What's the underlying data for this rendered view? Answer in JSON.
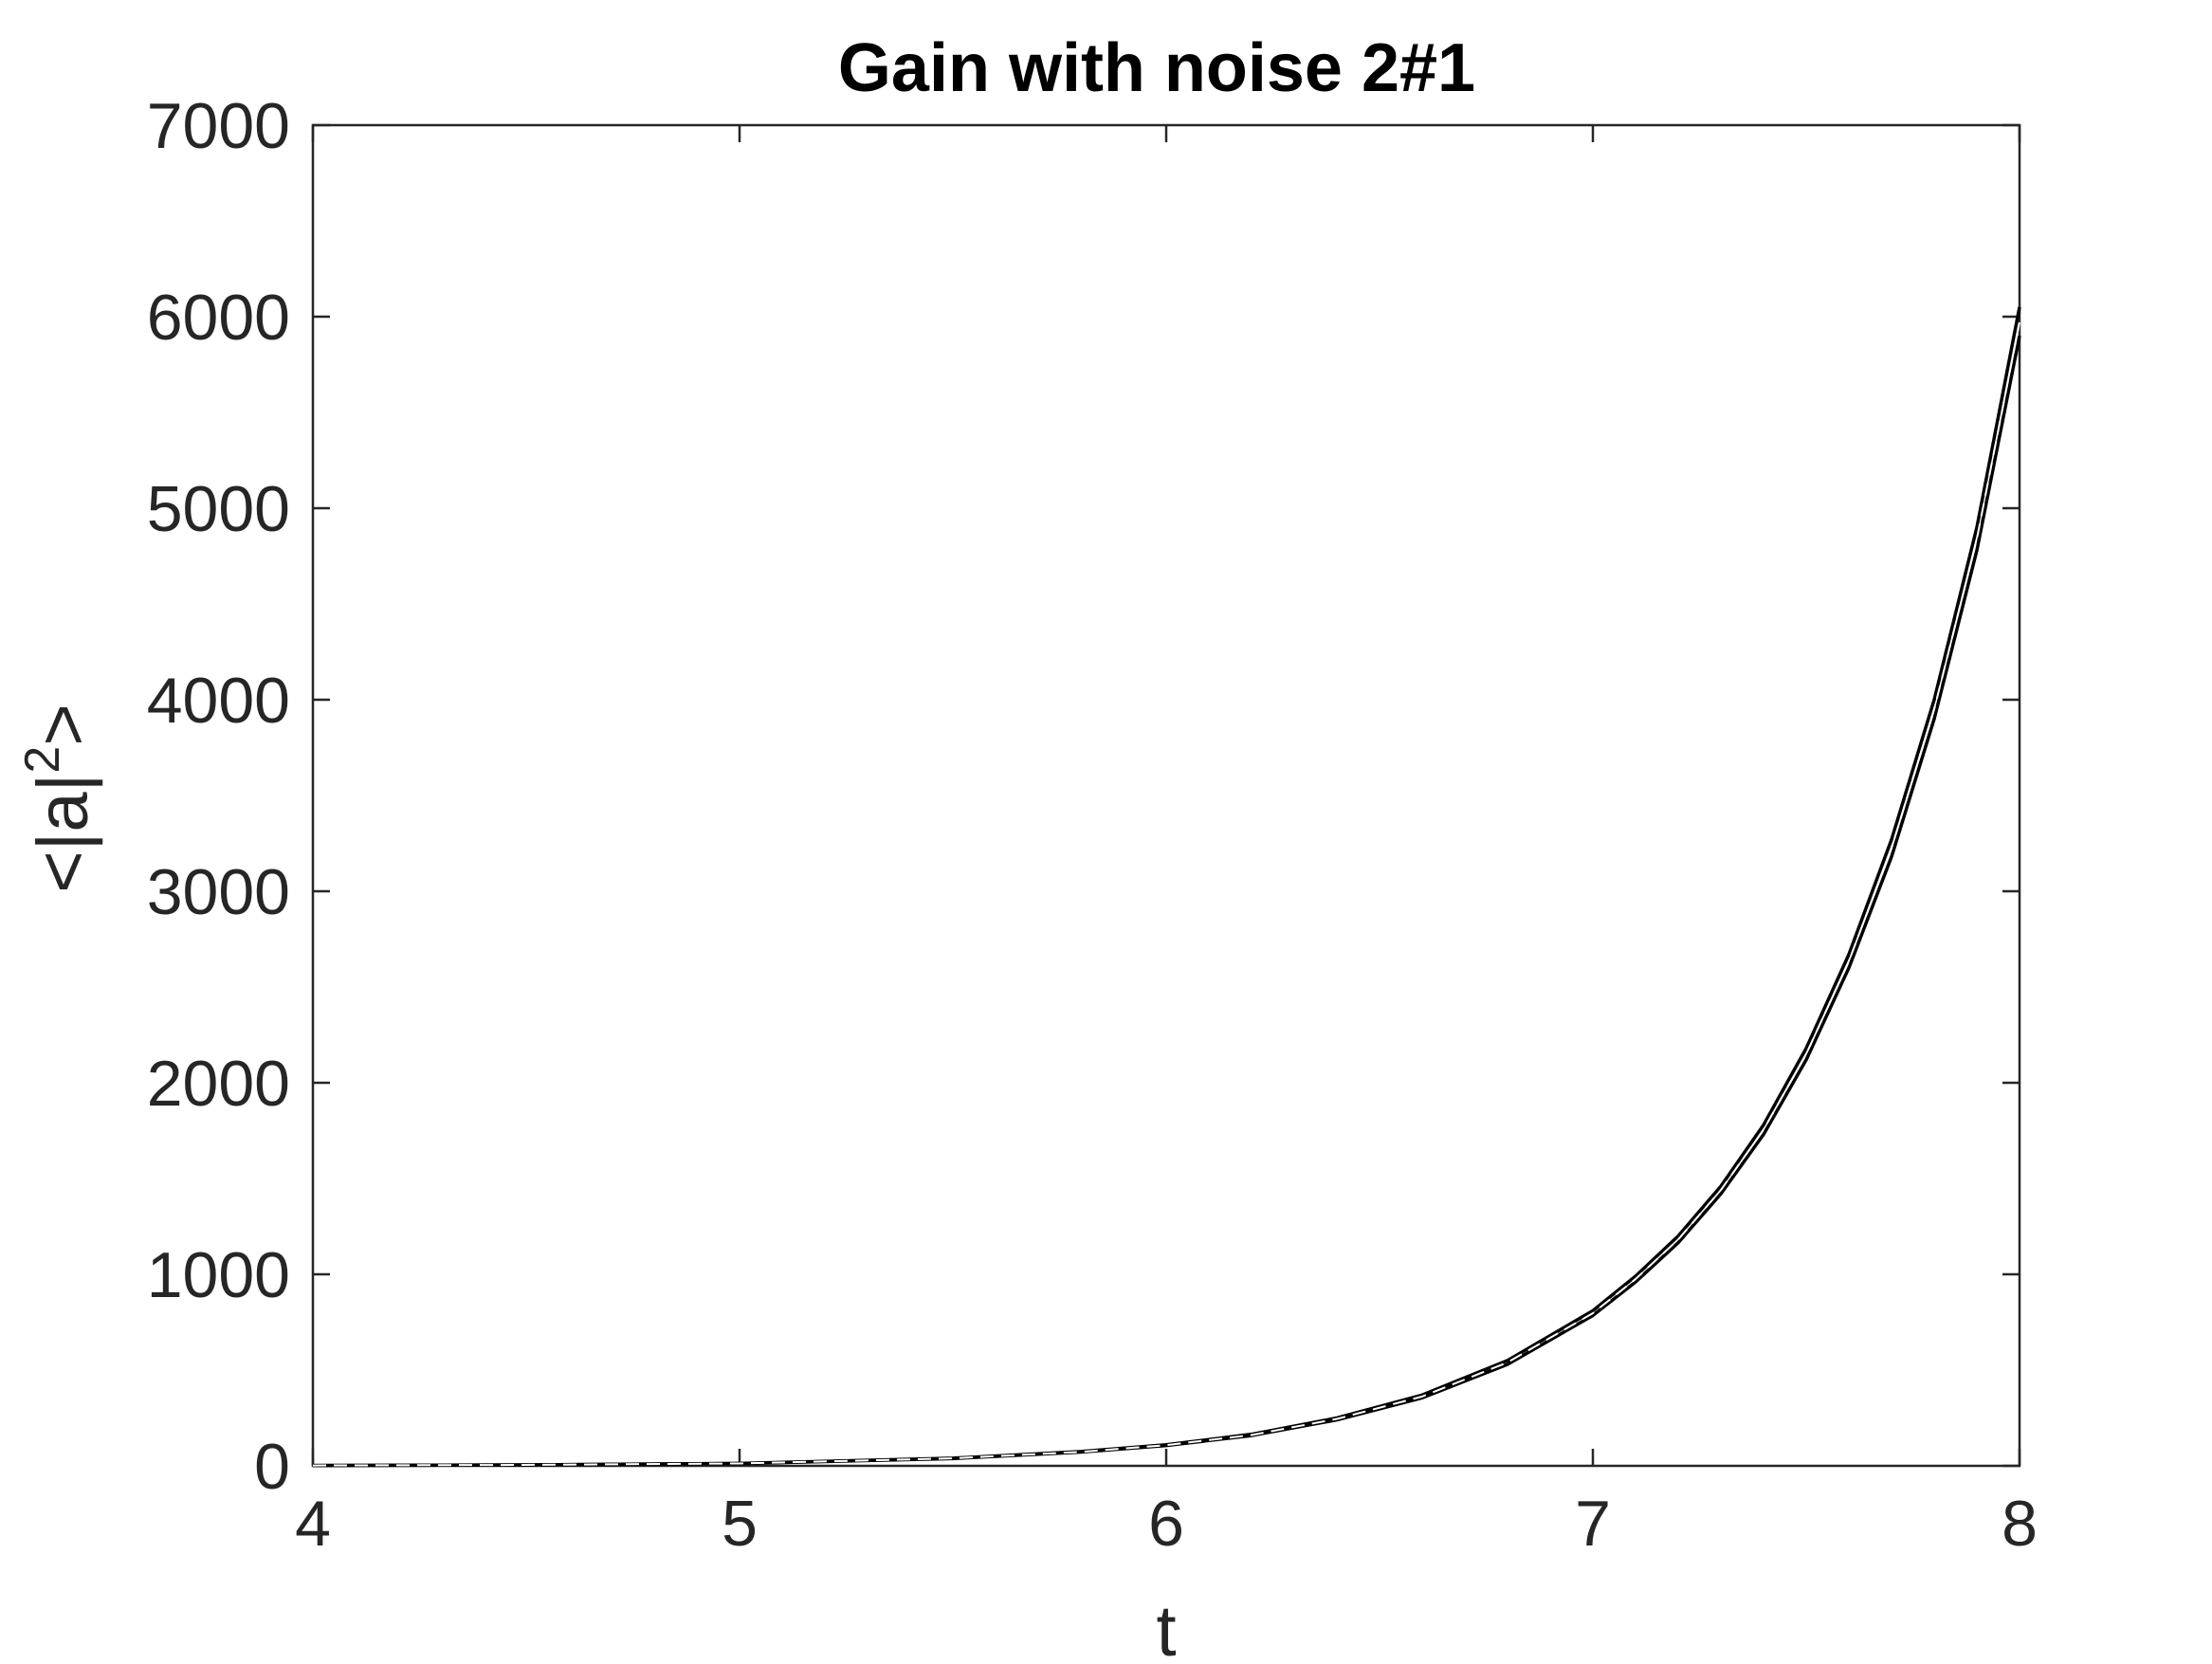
{
  "chart_data": {
    "type": "line",
    "title": "Gain with noise 2#1",
    "xlabel": "t",
    "ylabel": {
      "prefix": "<|a|",
      "superscript": "2",
      "suffix": ">"
    },
    "xlim": [
      4,
      8
    ],
    "ylim": [
      0,
      7000
    ],
    "xticks": [
      4,
      5,
      6,
      7,
      8
    ],
    "yticks": [
      0,
      1000,
      2000,
      3000,
      4000,
      5000,
      6000,
      7000
    ],
    "xtick_labels": [
      "4",
      "5",
      "6",
      "7",
      "8"
    ],
    "ytick_labels": [
      "0",
      "1000",
      "2000",
      "3000",
      "4000",
      "5000",
      "6000",
      "7000"
    ],
    "grid": false,
    "legend": "none",
    "colors": {
      "axes": "#262626",
      "series": "#000000",
      "background": "#ffffff"
    },
    "series": [
      {
        "style": "solid",
        "color": "#000000",
        "x": [
          4.0,
          4.5,
          5.0,
          5.5,
          5.8,
          6.0,
          6.2,
          6.4,
          6.6,
          6.8,
          7.0,
          7.1,
          7.2,
          7.3,
          7.4,
          7.5,
          7.6,
          7.7,
          7.8,
          7.9,
          8.0
        ],
        "y": [
          2,
          5,
          13,
          40,
          75,
          110,
          165,
          250,
          370,
          550,
          810,
          990,
          1200,
          1460,
          1780,
          2180,
          2670,
          3270,
          4000,
          4900,
          6050
        ]
      },
      {
        "style": "solid",
        "color": "#000000",
        "x": [
          4.0,
          4.5,
          5.0,
          5.5,
          5.8,
          6.0,
          6.2,
          6.4,
          6.6,
          6.8,
          7.0,
          7.1,
          7.2,
          7.3,
          7.4,
          7.5,
          7.6,
          7.7,
          7.8,
          7.9,
          8.0
        ],
        "y": [
          2,
          5,
          12,
          38,
          72,
          106,
          158,
          240,
          355,
          530,
          785,
          960,
          1165,
          1420,
          1730,
          2120,
          2600,
          3180,
          3900,
          4780,
          5900
        ]
      },
      {
        "style": "dashed",
        "color": "#ffffff",
        "x": [
          4.0,
          4.5,
          5.0,
          5.5,
          5.8,
          6.0,
          6.2,
          6.4,
          6.6,
          6.8,
          7.0,
          7.1,
          7.2,
          7.3,
          7.4,
          7.5,
          7.6,
          7.7,
          7.8,
          7.9,
          8.0
        ],
        "y": [
          2,
          5,
          12.5,
          39,
          73,
          108,
          161,
          245,
          362,
          540,
          797,
          975,
          1182,
          1440,
          1755,
          2150,
          2635,
          3225,
          3950,
          4840,
          5970
        ]
      }
    ]
  }
}
